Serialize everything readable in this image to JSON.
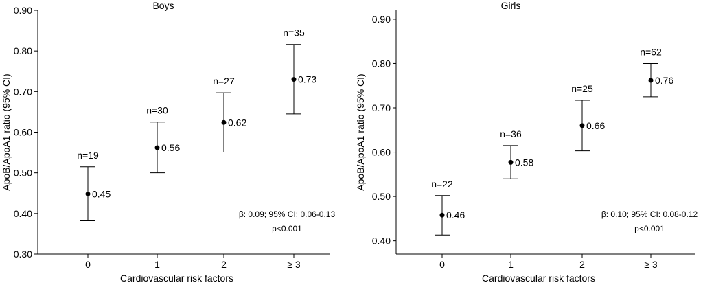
{
  "chart_data": [
    {
      "type": "errorbar",
      "title": "Boys",
      "xlabel": "Cardiovascular risk factors",
      "ylabel": "ApoB/ApoA1 ratio (95% CI)",
      "categories": [
        "0",
        "1",
        "2",
        "≥ 3"
      ],
      "ylim": [
        0.3,
        0.9
      ],
      "yticks": [
        "0.30",
        "0.40",
        "0.50",
        "0.60",
        "0.70",
        "0.80",
        "0.90"
      ],
      "values": [
        0.448,
        0.562,
        0.624,
        0.73
      ],
      "value_labels": [
        "0.45",
        "0.56",
        "0.62",
        "0.73"
      ],
      "lower": [
        0.382,
        0.5,
        0.551,
        0.645
      ],
      "upper": [
        0.515,
        0.625,
        0.697,
        0.816
      ],
      "n_labels": [
        "n=19",
        "n=30",
        "n=27",
        "n=35"
      ],
      "annotation": [
        "β: 0.09; 95% CI: 0.06-0.13",
        "p<0.001"
      ]
    },
    {
      "type": "errorbar",
      "title": "Girls",
      "xlabel": "Cardiovascular risk factors",
      "ylabel": "ApoB/ApoA1 ratio (95% CI)",
      "categories": [
        "0",
        "1",
        "2",
        "≥ 3"
      ],
      "ylim": [
        0.37,
        0.92
      ],
      "yticks": [
        "0.40",
        "0.50",
        "0.60",
        "0.70",
        "0.80",
        "0.90"
      ],
      "values": [
        0.458,
        0.577,
        0.66,
        0.762
      ],
      "value_labels": [
        "0.46",
        "0.58",
        "0.66",
        "0.76"
      ],
      "lower": [
        0.413,
        0.54,
        0.603,
        0.725
      ],
      "upper": [
        0.502,
        0.615,
        0.717,
        0.8
      ],
      "n_labels": [
        "n=22",
        "n=36",
        "n=25",
        "n=62"
      ],
      "annotation": [
        "β: 0.10; 95% CI: 0.08-0.12",
        "p<0.001"
      ]
    }
  ]
}
